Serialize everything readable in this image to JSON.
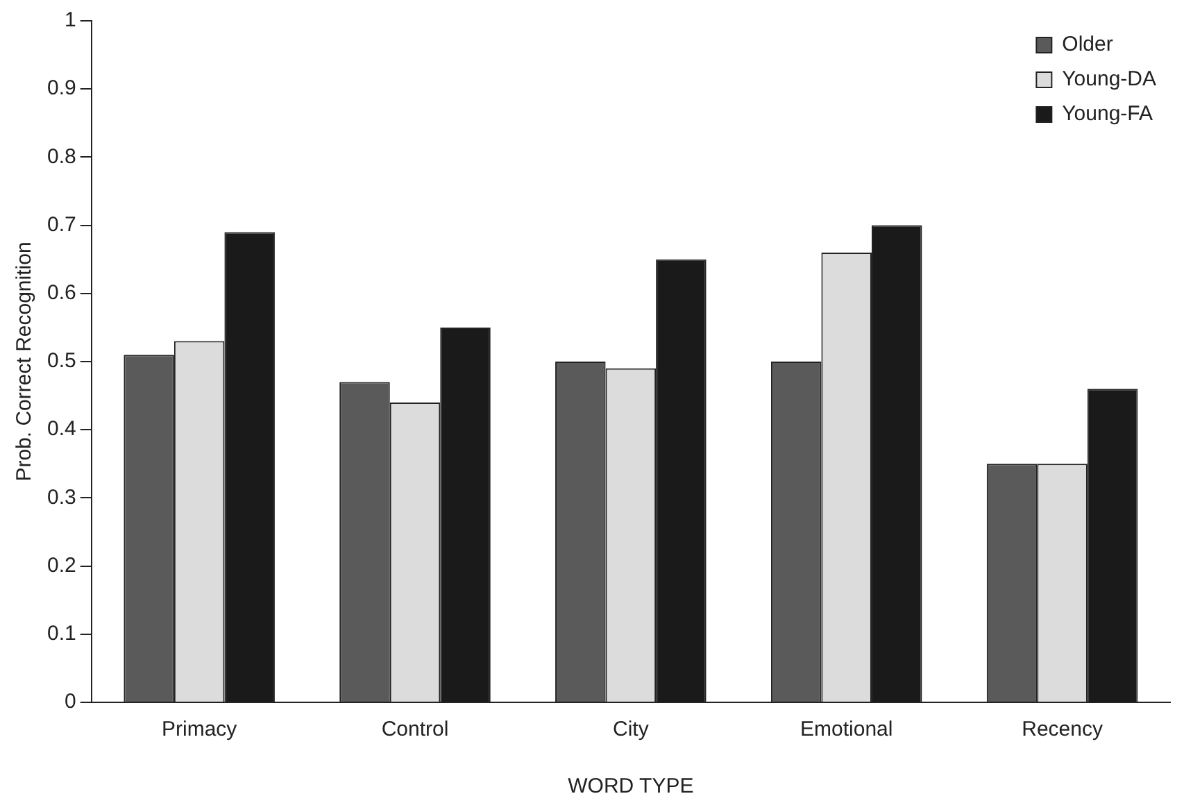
{
  "chart_data": {
    "type": "bar",
    "xlabel": "WORD TYPE",
    "ylabel": "Prob. Correct Recognition",
    "categories": [
      "Primacy",
      "Control",
      "City",
      "Emotional",
      "Recency"
    ],
    "series": [
      {
        "name": "Older",
        "color": "#5a5a5a",
        "values": [
          0.51,
          0.47,
          0.5,
          0.5,
          0.35
        ]
      },
      {
        "name": "Young-DA",
        "color": "#dcdcdc",
        "values": [
          0.53,
          0.44,
          0.49,
          0.66,
          0.35
        ]
      },
      {
        "name": "Young-FA",
        "color": "#1a1a1a",
        "values": [
          0.69,
          0.55,
          0.65,
          0.7,
          0.46
        ]
      }
    ],
    "ylim": [
      0,
      1
    ],
    "yticks": [
      0,
      0.1,
      0.2,
      0.3,
      0.4,
      0.5,
      0.6,
      0.7,
      0.8,
      0.9,
      1
    ],
    "grid": false,
    "legend": "top right"
  }
}
